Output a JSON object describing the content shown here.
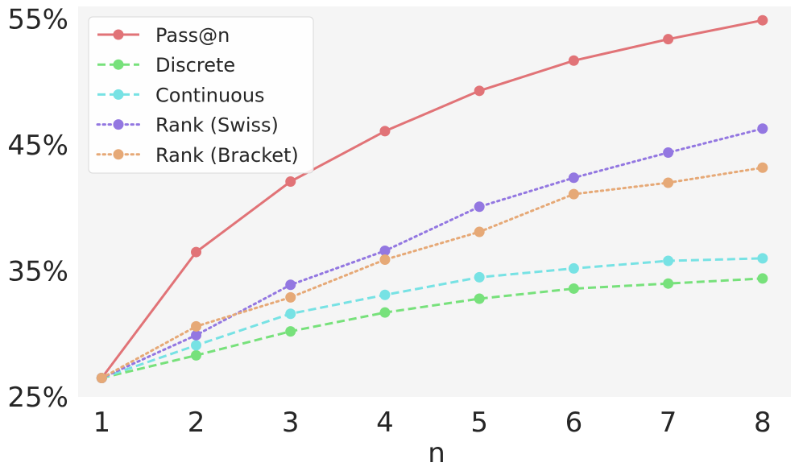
{
  "chart_data": {
    "type": "line",
    "title": "",
    "xlabel": "n",
    "ylabel": "",
    "x": [
      1,
      2,
      3,
      4,
      5,
      6,
      7,
      8
    ],
    "xlim": [
      0.75,
      8.3
    ],
    "ylim": [
      25,
      56
    ],
    "yticks": [
      25,
      35,
      45,
      55
    ],
    "ytick_labels": [
      "25%",
      "35%",
      "45%",
      "55%"
    ],
    "xtick_labels": [
      "1",
      "2",
      "3",
      "4",
      "5",
      "6",
      "7",
      "8"
    ],
    "grid": false,
    "legend_position": "top-left",
    "series": [
      {
        "name": "Pass@n",
        "color": "#e17377",
        "style": "solid",
        "values": [
          26.5,
          36.5,
          42.1,
          46.1,
          49.3,
          51.7,
          53.4,
          54.9
        ]
      },
      {
        "name": "Discrete",
        "color": "#77e17b",
        "style": "dashed",
        "values": [
          26.5,
          28.3,
          30.2,
          31.7,
          32.8,
          33.6,
          34.0,
          34.4
        ]
      },
      {
        "name": "Continuous",
        "color": "#77e2e4",
        "style": "dashed",
        "values": [
          26.5,
          29.1,
          31.6,
          33.1,
          34.5,
          35.2,
          35.8,
          36.0
        ]
      },
      {
        "name": "Rank (Swiss)",
        "color": "#9377e1",
        "style": "dotted",
        "values": [
          26.5,
          29.9,
          33.9,
          36.6,
          40.1,
          42.4,
          44.4,
          46.3
        ]
      },
      {
        "name": "Rank (Bracket)",
        "color": "#e6a977",
        "style": "dotted",
        "values": [
          26.5,
          30.6,
          32.9,
          35.9,
          38.1,
          41.1,
          42.0,
          43.2
        ]
      }
    ]
  }
}
